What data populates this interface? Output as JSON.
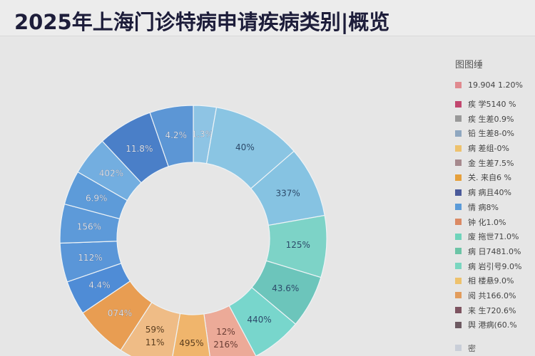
{
  "page": {
    "title": "2025年上海门诊特病申请疾病类别|概览"
  },
  "legend": {
    "title": "图图缍",
    "items": [
      {
        "label": "19.904 1.20%",
        "color": "#e08a8f"
      },
      {
        "label": "疾 学5140 %",
        "color": "#c2476f"
      },
      {
        "label": "疾 生差0.9%",
        "color": "#999999"
      },
      {
        "label": "铅 生差8-0%",
        "color": "#8fa7c0"
      },
      {
        "label": "病 差组-0%",
        "color": "#eec26d"
      },
      {
        "label": "金 生差7.5%",
        "color": "#a68a8e"
      },
      {
        "label": "关. 来自6 %",
        "color": "#e6a03c"
      },
      {
        "label": "病 病且40%",
        "color": "#4a5a9a"
      },
      {
        "label": "情 病8%",
        "color": "#5b9bd9"
      },
      {
        "label": "钟 化1.0%",
        "color": "#db8a64"
      },
      {
        "label": "废 拖世71.0%",
        "color": "#6fd4bb"
      },
      {
        "label": "病 日7481.0%",
        "color": "#6cc4a6"
      },
      {
        "label": "病 岩引号9.0%",
        "color": "#7ad6c0"
      },
      {
        "label": "相 楼悬9.0%",
        "color": "#eec26d"
      },
      {
        "label": "阅 共166.0%",
        "color": "#e29c5c"
      },
      {
        "label": "来 生720.6%",
        "color": "#7d5360"
      },
      {
        "label": "舆 港病(60.%",
        "color": "#6d5a62"
      }
    ],
    "extra": {
      "label": "密",
      "color": "#c9ced8"
    }
  },
  "chart_data": {
    "type": "pie",
    "subtype": "donut",
    "title": "2025年上海门诊特病申请疾病类别|概览",
    "center": [
      271,
      284
    ],
    "outer_radius": 187,
    "inner_radius": 107,
    "segments": [
      {
        "label": "1.3%",
        "start": 0,
        "end": 10,
        "color": "#8ec4e4",
        "text_color": "#ffffff"
      },
      {
        "label": "40%",
        "start": 10,
        "end": 49,
        "color": "#8ac5e3",
        "text_color": "#2d4a6a"
      },
      {
        "label": "337%",
        "start": 49,
        "end": 80,
        "color": "#86c3e2",
        "text_color": "#2d4a6a"
      },
      {
        "label": "125%",
        "start": 80,
        "end": 107,
        "color": "#7dd3c7",
        "text_color": "#2d4a6a"
      },
      {
        "label": "43.6%",
        "start": 107,
        "end": 130,
        "color": "#6cc5bb",
        "text_color": "#2d4a6a"
      },
      {
        "label": "440%",
        "start": 130,
        "end": 152,
        "color": "#78d6cc",
        "text_color": "#2d4a6a"
      },
      {
        "label": "12%\n216%",
        "start": 152,
        "end": 172,
        "color": "#ecaa98",
        "text_color": "#6a3d34"
      },
      {
        "label": "495%",
        "start": 172,
        "end": 190,
        "color": "#f0b56c",
        "text_color": "#5a3d1e"
      },
      {
        "label": "59%\n11%",
        "start": 190,
        "end": 213,
        "color": "#efbc86",
        "text_color": "#5a3d1e"
      },
      {
        "label": "074%",
        "start": 213,
        "end": 236,
        "color": "#e89d52",
        "text_color": "#ffffff"
      },
      {
        "label": "4.4%",
        "start": 236,
        "end": 251,
        "color": "#4f8cd6",
        "text_color": "#ffffff"
      },
      {
        "label": "112%",
        "start": 251,
        "end": 268,
        "color": "#5a96d8",
        "text_color": "#ffffff"
      },
      {
        "label": "156%",
        "start": 268,
        "end": 285,
        "color": "#5d9ad9",
        "text_color": "#ffffff"
      },
      {
        "label": "6.9%",
        "start": 285,
        "end": 300,
        "color": "#5d9bd9",
        "text_color": "#ffffff"
      },
      {
        "label": "402%",
        "start": 300,
        "end": 317,
        "color": "#73aee0",
        "text_color": "#ffffff"
      },
      {
        "label": "11.8%",
        "start": 317,
        "end": 341,
        "color": "#4a7fc8",
        "text_color": "#ffffff"
      },
      {
        "label": "4.2%",
        "start": 341,
        "end": 360,
        "color": "#5c96d5",
        "text_color": "#ffffff"
      }
    ],
    "legend_position": "right"
  }
}
